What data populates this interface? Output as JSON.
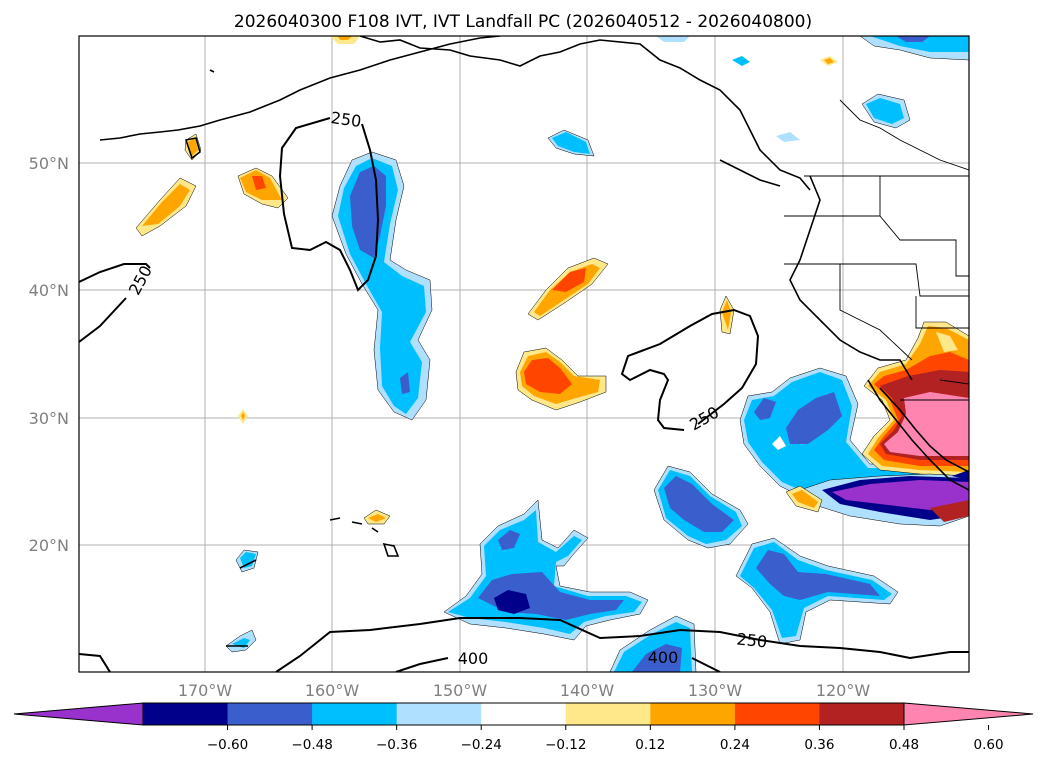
{
  "title": "2026040300 F108 IVT, IVT Landfall PC (2026040512 - 2026040800)",
  "map": {
    "lat_labels": [
      "50°N",
      "40°N",
      "30°N",
      "20°N"
    ],
    "lon_labels": [
      "170°W",
      "160°W",
      "150°W",
      "140°W",
      "130°W",
      "120°W"
    ],
    "contour_labels": [
      "250",
      "250",
      "250",
      "250",
      "400",
      "400"
    ]
  },
  "colorbar": {
    "tick_labels": [
      "−0.60",
      "−0.48",
      "−0.36",
      "−0.24",
      "−0.12",
      "0.12",
      "0.24",
      "0.36",
      "0.48",
      "0.60"
    ],
    "colors": [
      "#9932cc",
      "#00008b",
      "#3a5fcd",
      "#00bfff",
      "#b0e0ff",
      "#ffffff",
      "#ffe88a",
      "#ffa500",
      "#ff4500",
      "#b22222",
      "#ff85b0"
    ]
  }
}
